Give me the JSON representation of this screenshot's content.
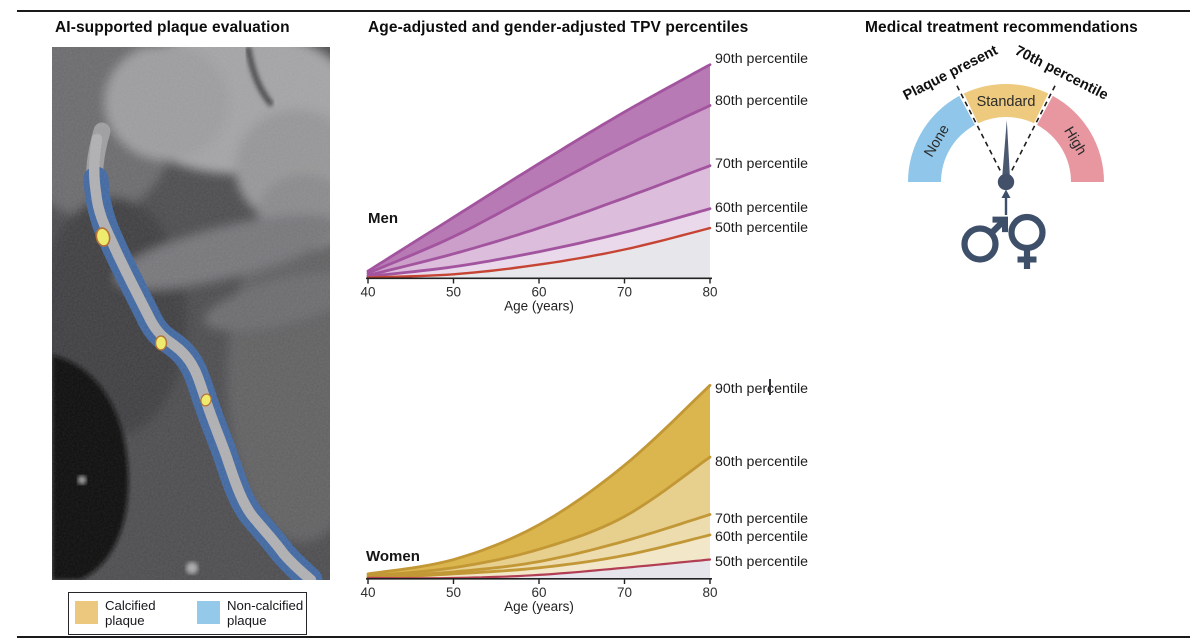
{
  "panel_titles": {
    "plaque": "AI-supported plaque evaluation",
    "percentiles": "Age-adjusted and gender-adjusted TPV percentiles",
    "treatment": "Medical treatment recommendations"
  },
  "legend": {
    "items": [
      {
        "label": "Calcified plaque",
        "color": "#ecc87e"
      },
      {
        "label": "Non-calcified plaque",
        "color": "#94c9ea"
      }
    ]
  },
  "ct": {
    "calcified_color": "#efec66",
    "noncalcified_color": "#3f66a0"
  },
  "chart_data": [
    {
      "name": "men",
      "type": "area",
      "group_label": "Men",
      "x": [
        40,
        50,
        60,
        70,
        80
      ],
      "xlabel": "Age (years)",
      "ylabel": "",
      "y_axis_shown": false,
      "xlim": [
        40,
        80
      ],
      "series": [
        {
          "label": "90th percentile",
          "values": [
            0.03,
            0.28,
            0.53,
            0.77,
            0.99
          ],
          "line_color": "#a2549e",
          "line_width": 2.8
        },
        {
          "label": "80th percentile",
          "values": [
            0.02,
            0.19,
            0.4,
            0.61,
            0.8
          ],
          "line_color": "#a2549e",
          "line_width": 2.8
        },
        {
          "label": "70th percentile",
          "values": [
            0.01,
            0.11,
            0.23,
            0.37,
            0.52
          ],
          "line_color": "#a2549e",
          "line_width": 2.8
        },
        {
          "label": "60th percentile",
          "values": [
            0.005,
            0.05,
            0.12,
            0.21,
            0.32
          ],
          "line_color": "#a2549e",
          "line_width": 2.8
        },
        {
          "label": "50th percentile",
          "values": [
            0.0,
            0.015,
            0.06,
            0.13,
            0.23
          ],
          "line_color": "#c64433",
          "line_width": 2.4
        }
      ],
      "band_colors": [
        "#b77ab5",
        "#cb9fca",
        "#dcbddc",
        "#ead9ea"
      ],
      "baseline_fill": "#e6e6eb"
    },
    {
      "name": "women",
      "type": "area",
      "group_label": "Women",
      "x": [
        40,
        50,
        60,
        70,
        80
      ],
      "xlabel": "Age (years)",
      "ylabel": "",
      "y_axis_shown": false,
      "xlim": [
        40,
        80
      ],
      "series": [
        {
          "label": "90th percentile",
          "values": [
            0.02,
            0.09,
            0.26,
            0.55,
            0.94
          ],
          "line_color": "#c29736",
          "line_width": 2.8
        },
        {
          "label": "80th percentile",
          "values": [
            0.01,
            0.05,
            0.14,
            0.3,
            0.59
          ],
          "line_color": "#c29736",
          "line_width": 2.8
        },
        {
          "label": "70th percentile",
          "values": [
            0.005,
            0.03,
            0.08,
            0.18,
            0.31
          ],
          "line_color": "#c29736",
          "line_width": 2.8
        },
        {
          "label": "60th percentile",
          "values": [
            0.0,
            0.02,
            0.05,
            0.11,
            0.21
          ],
          "line_color": "#c29736",
          "line_width": 2.8
        },
        {
          "label": "50th percentile",
          "values": [
            0.0,
            0.0,
            0.015,
            0.05,
            0.09
          ],
          "line_color": "#b23e53",
          "line_width": 2.2
        }
      ],
      "band_colors": [
        "#dbb54d",
        "#e7cf8d",
        "#eddcad",
        "#f2e7c9"
      ],
      "baseline_fill": "#e7e5ec"
    }
  ],
  "gauge": {
    "segments": [
      {
        "label": "None",
        "color": "#90c6e9",
        "start_deg": 180,
        "end_deg": 118.5
      },
      {
        "label": "Standard",
        "color": "#edca7e",
        "start_deg": 115.5,
        "end_deg": 64.5
      },
      {
        "label": "High",
        "color": "#e897a1",
        "start_deg": 61.5,
        "end_deg": 0
      }
    ],
    "boundary_lines_deg": [
      117,
      63
    ],
    "boundary_labels": [
      {
        "text": "Plaque present",
        "angle_deg": 117
      },
      {
        "text": "70th percentile",
        "angle_deg": 63
      }
    ],
    "needle_color": "#4a5870",
    "hub_color": "#42506a",
    "icon_color": "#3d4f69"
  }
}
